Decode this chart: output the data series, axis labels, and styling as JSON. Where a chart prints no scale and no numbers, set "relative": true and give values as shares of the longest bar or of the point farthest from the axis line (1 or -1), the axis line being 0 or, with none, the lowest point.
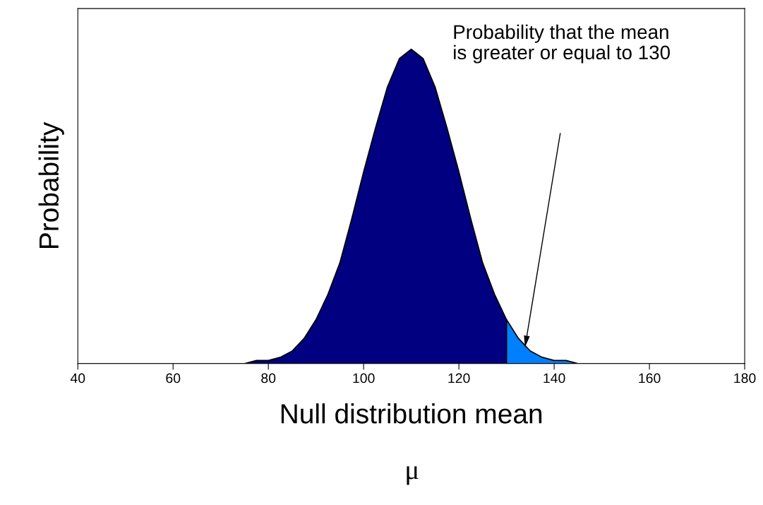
{
  "chart_data": {
    "type": "area",
    "relative": true,
    "xlabel": "Null distribution mean",
    "ylabel": "Probability",
    "xlim": [
      40,
      180
    ],
    "xticks": [
      40,
      60,
      80,
      100,
      120,
      140,
      160,
      180
    ],
    "grid": false,
    "legend": false,
    "series": [
      {
        "color": "#000080",
        "x": [
          40,
          70,
          72.5,
          75,
          77.5,
          80,
          82.5,
          85,
          87.5,
          90,
          92.5,
          95,
          97.5,
          100,
          102.5,
          105,
          107.5,
          110,
          112.5,
          115,
          117.5,
          120,
          122.5,
          125,
          127.5,
          130
        ],
        "values": [
          0,
          0,
          0,
          0,
          0.01,
          0.01,
          0.02,
          0.04,
          0.08,
          0.14,
          0.22,
          0.32,
          0.46,
          0.61,
          0.75,
          0.88,
          0.97,
          1,
          0.97,
          0.88,
          0.75,
          0.61,
          0.46,
          0.32,
          0.22,
          0.14
        ]
      },
      {
        "color": "#0080ff",
        "x": [
          130,
          132.5,
          135,
          137.5,
          140,
          142.5,
          145,
          150,
          180
        ],
        "values": [
          0.14,
          0.08,
          0.04,
          0.02,
          0.01,
          0.01,
          0,
          0,
          0
        ]
      }
    ],
    "annotations": [
      "Probability that the mean\nis greater or equal to 130",
      "μ"
    ]
  }
}
